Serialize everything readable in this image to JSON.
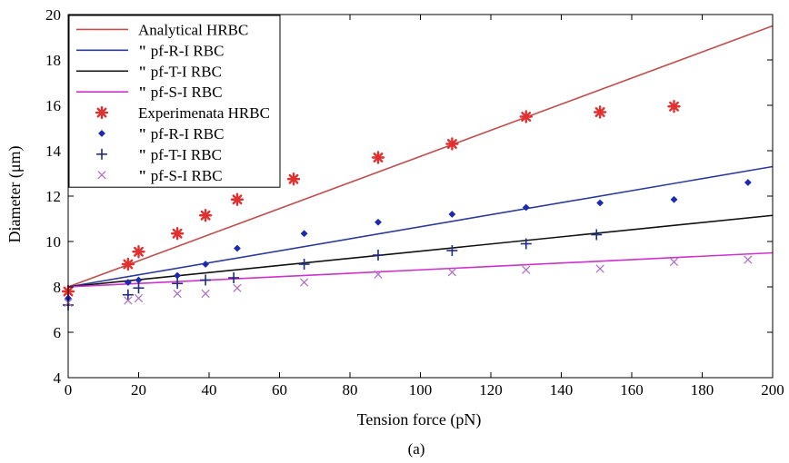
{
  "chart_data": {
    "type": "scatter",
    "xlabel": "Tension force (pN)",
    "ylabel": "Diameter (μm)",
    "caption": "(a)",
    "xlim": [
      0,
      200
    ],
    "ylim": [
      4,
      20
    ],
    "xticks": [
      0,
      20,
      40,
      60,
      80,
      100,
      120,
      140,
      160,
      180,
      200
    ],
    "yticks": [
      4,
      6,
      8,
      10,
      12,
      14,
      16,
      18,
      20
    ],
    "grid": false,
    "legend_position": "top-left",
    "series": [
      {
        "name": "Analytical HRBC",
        "label_mark": "",
        "kind": "line",
        "color": "#c0504d",
        "x": [
          0,
          200
        ],
        "y": [
          8.0,
          19.5
        ]
      },
      {
        "name": "pf-R-I RBC",
        "label_mark": "\"",
        "kind": "line",
        "color": "#2b3a9c",
        "x": [
          0,
          200
        ],
        "y": [
          8.0,
          13.3
        ]
      },
      {
        "name": "pf-T-I RBC",
        "label_mark": "\"",
        "kind": "line",
        "color": "#111111",
        "x": [
          0,
          200
        ],
        "y": [
          8.0,
          11.15
        ]
      },
      {
        "name": "pf-S-I RBC",
        "label_mark": "\"",
        "kind": "line",
        "color": "#cc33cc",
        "x": [
          0,
          200
        ],
        "y": [
          8.0,
          9.5
        ]
      },
      {
        "name": "Experimenata HRBC",
        "label_mark": "",
        "kind": "marker",
        "marker": "asterisk",
        "color": "#e03030",
        "x": [
          0,
          17,
          20,
          31,
          39,
          48,
          64,
          88,
          109,
          130,
          151,
          172
        ],
        "y": [
          7.8,
          9.0,
          9.55,
          10.35,
          11.15,
          11.85,
          12.75,
          13.7,
          14.3,
          15.5,
          15.7,
          15.95
        ]
      },
      {
        "name": "pf-R-I RBC",
        "label_mark": "\"",
        "kind": "marker",
        "marker": "diamond",
        "color": "#1c2ab0",
        "x": [
          0,
          17,
          20,
          31,
          39,
          48,
          67,
          88,
          109,
          130,
          151,
          172,
          193
        ],
        "y": [
          7.5,
          8.2,
          8.3,
          8.5,
          9.0,
          9.7,
          10.35,
          10.85,
          11.2,
          11.5,
          11.7,
          11.85,
          12.6
        ]
      },
      {
        "name": "pf-T-I RBC",
        "label_mark": "\"",
        "kind": "marker",
        "marker": "plus",
        "color": "#1f2d7a",
        "x": [
          0,
          17,
          20,
          31,
          39,
          47,
          67,
          88,
          109,
          130,
          150
        ],
        "y": [
          7.2,
          7.65,
          7.95,
          8.15,
          8.3,
          8.4,
          9.0,
          9.4,
          9.6,
          9.9,
          10.3
        ]
      },
      {
        "name": "pf-S-I RBC",
        "label_mark": "\"",
        "kind": "marker",
        "marker": "x",
        "color": "#b070c8",
        "x": [
          0,
          17,
          20,
          31,
          39,
          48,
          67,
          88,
          109,
          130,
          151,
          172,
          193
        ],
        "y": [
          7.3,
          7.4,
          7.5,
          7.7,
          7.7,
          7.95,
          8.2,
          8.55,
          8.65,
          8.75,
          8.8,
          9.1,
          9.2
        ]
      }
    ]
  }
}
